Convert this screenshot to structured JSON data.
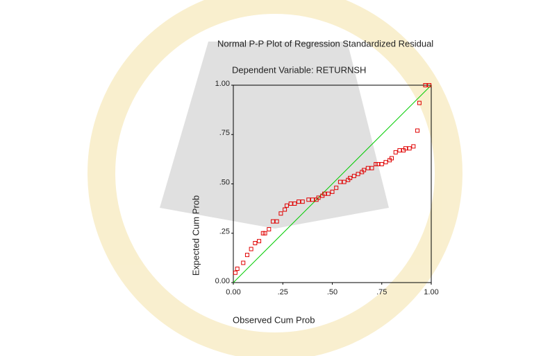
{
  "chart_data": {
    "type": "scatter",
    "title": "Normal P-P Plot of Regression Standardized Residual",
    "subtitle": "Dependent Variable: RETURNSH",
    "xlabel": "Observed Cum Prob",
    "ylabel": "Expected Cum Prob",
    "color": "#e00000",
    "line_color": "#00cc00",
    "xlim": [
      0,
      1
    ],
    "ylim": [
      0,
      1
    ],
    "xticks": [
      {
        "value": 0,
        "label": "0.00"
      },
      {
        "value": 0.25,
        "label": ".25"
      },
      {
        "value": 0.5,
        "label": ".50"
      },
      {
        "value": 0.75,
        "label": ".75"
      },
      {
        "value": 1,
        "label": "1.00"
      }
    ],
    "yticks": [
      {
        "value": 0,
        "label": "0.00"
      },
      {
        "value": 0.25,
        "label": ".25"
      },
      {
        "value": 0.5,
        "label": ".50"
      },
      {
        "value": 0.75,
        "label": ".75"
      },
      {
        "value": 1,
        "label": "1.00"
      }
    ],
    "x": [
      0.01,
      0.02,
      0.05,
      0.07,
      0.09,
      0.11,
      0.13,
      0.15,
      0.16,
      0.18,
      0.2,
      0.22,
      0.24,
      0.26,
      0.27,
      0.29,
      0.31,
      0.33,
      0.35,
      0.38,
      0.4,
      0.42,
      0.43,
      0.45,
      0.46,
      0.48,
      0.5,
      0.52,
      0.54,
      0.56,
      0.58,
      0.59,
      0.61,
      0.63,
      0.65,
      0.66,
      0.68,
      0.7,
      0.72,
      0.73,
      0.75,
      0.77,
      0.79,
      0.8,
      0.82,
      0.84,
      0.86,
      0.87,
      0.89,
      0.91,
      0.93,
      0.94,
      0.97,
      0.99
    ],
    "values": [
      0.05,
      0.07,
      0.1,
      0.14,
      0.17,
      0.2,
      0.21,
      0.25,
      0.25,
      0.27,
      0.31,
      0.31,
      0.35,
      0.37,
      0.39,
      0.4,
      0.4,
      0.41,
      0.41,
      0.42,
      0.42,
      0.42,
      0.43,
      0.44,
      0.45,
      0.45,
      0.46,
      0.48,
      0.51,
      0.51,
      0.52,
      0.53,
      0.54,
      0.55,
      0.56,
      0.57,
      0.58,
      0.58,
      0.6,
      0.6,
      0.6,
      0.61,
      0.62,
      0.63,
      0.66,
      0.67,
      0.67,
      0.68,
      0.68,
      0.69,
      0.77,
      0.91,
      1.0,
      1.0
    ]
  }
}
